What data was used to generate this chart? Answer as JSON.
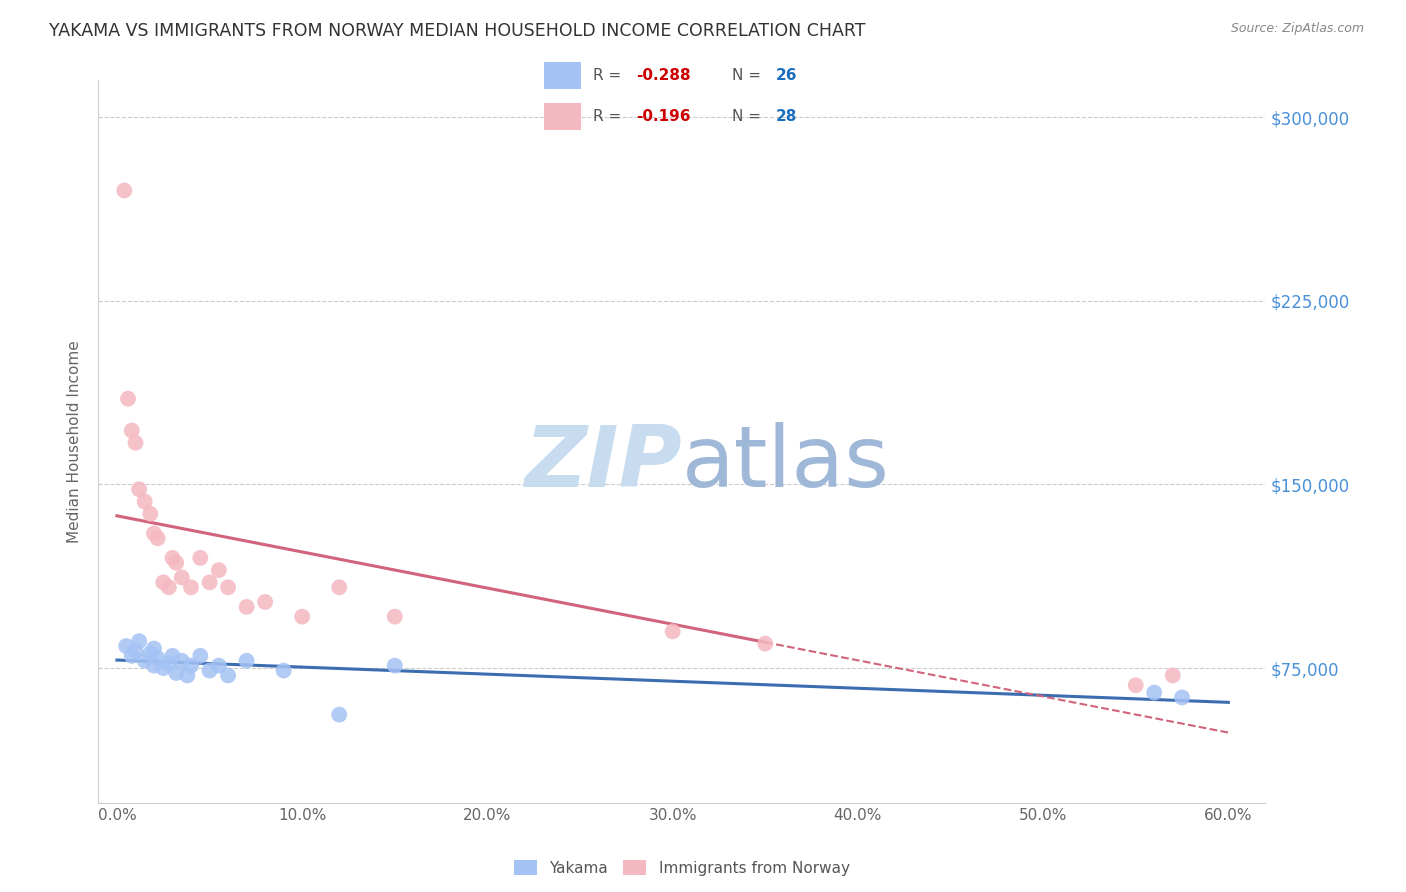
{
  "title": "YAKAMA VS IMMIGRANTS FROM NORWAY MEDIAN HOUSEHOLD INCOME CORRELATION CHART",
  "source": "Source: ZipAtlas.com",
  "ylabel": "Median Household Income",
  "xlabel_ticks": [
    "0.0%",
    "10.0%",
    "20.0%",
    "30.0%",
    "40.0%",
    "50.0%",
    "60.0%"
  ],
  "xlabel_vals": [
    0.0,
    10.0,
    20.0,
    30.0,
    40.0,
    50.0,
    60.0
  ],
  "ytick_labels_right": [
    "$300,000",
    "$225,000",
    "$150,000",
    "$75,000"
  ],
  "ytick_vals_right": [
    300000,
    225000,
    150000,
    75000
  ],
  "ylim": [
    20000,
    315000
  ],
  "xlim": [
    -1.0,
    62.0
  ],
  "series1_name": "Yakama",
  "series1_color": "#a4c2f4",
  "series1_line_color": "#3c6db0",
  "series2_name": "Immigrants from Norway",
  "series2_color": "#f4b8c1",
  "series2_line_color": "#d1637a",
  "background_color": "#ffffff",
  "grid_color": "#cccccc",
  "title_color": "#333333",
  "ytick_color": "#4a90d9",
  "watermark_zip_color": "#c8dcf0",
  "watermark_atlas_color": "#a0b8d8",
  "legend_box_color": "#cccccc",
  "legend_R_label_color": "#555555",
  "legend_R_value_color": "#cc0000",
  "legend_N_label_color": "#555555",
  "legend_N_value_color": "#1a6dbd",
  "yakama_x": [
    0.5,
    0.8,
    1.0,
    1.2,
    1.5,
    1.8,
    2.0,
    2.0,
    2.2,
    2.5,
    2.8,
    3.0,
    3.2,
    3.5,
    3.8,
    4.0,
    4.5,
    5.0,
    5.5,
    6.0,
    7.0,
    9.0,
    12.0,
    15.0,
    56.0,
    57.5
  ],
  "yakama_y": [
    84000,
    80000,
    82000,
    86000,
    78000,
    81000,
    76000,
    83000,
    79000,
    75000,
    77000,
    80000,
    73000,
    78000,
    72000,
    76000,
    80000,
    74000,
    76000,
    72000,
    78000,
    74000,
    56000,
    76000,
    65000,
    63000
  ],
  "norway_x": [
    0.4,
    0.6,
    0.8,
    1.0,
    1.2,
    1.5,
    1.8,
    2.0,
    2.2,
    2.5,
    2.8,
    3.0,
    3.2,
    3.5,
    4.0,
    4.5,
    5.0,
    5.5,
    6.0,
    7.0,
    8.0,
    10.0,
    12.0,
    15.0,
    30.0,
    35.0,
    55.0,
    57.0
  ],
  "norway_y": [
    270000,
    185000,
    172000,
    167000,
    148000,
    143000,
    138000,
    130000,
    128000,
    110000,
    108000,
    120000,
    118000,
    112000,
    108000,
    120000,
    110000,
    115000,
    108000,
    100000,
    102000,
    96000,
    108000,
    96000,
    90000,
    85000,
    68000,
    72000
  ],
  "norway_solid_max_x": 35.0,
  "trend_line_x_start": 0.0,
  "trend_line_x_end": 60.0
}
